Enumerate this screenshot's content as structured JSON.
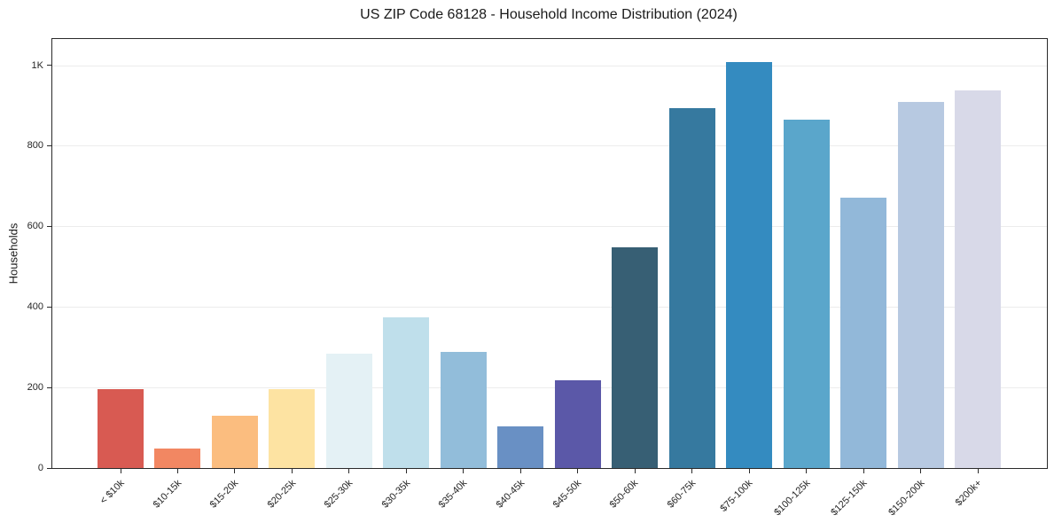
{
  "chart_data": {
    "type": "bar",
    "title": "US ZIP Code 68128 - Household Income Distribution (2024)",
    "xlabel": "",
    "ylabel": "Households",
    "categories": [
      "< $10k",
      "$10-15k",
      "$15-20k",
      "$20-25k",
      "$25-30k",
      "$30-35k",
      "$35-40k",
      "$40-45k",
      "$45-50k",
      "$50-60k",
      "$60-75k",
      "$75-100k",
      "$100-125k",
      "$125-150k",
      "$150-200k",
      "$200k+"
    ],
    "values": [
      195,
      48,
      130,
      195,
      284,
      375,
      289,
      104,
      217,
      548,
      894,
      1008,
      864,
      672,
      908,
      937
    ],
    "bar_colors": [
      "#d85a52",
      "#f28762",
      "#fbbd7f",
      "#fde3a2",
      "#e4f1f5",
      "#bfdfeb",
      "#92bdda",
      "#6990c4",
      "#5b58a8",
      "#375f74",
      "#36799f",
      "#348bc0",
      "#5aa6cb",
      "#92b8d9",
      "#b7c9e1",
      "#d8d9e8"
    ],
    "y_ticks": [
      {
        "value": 0,
        "label": "0"
      },
      {
        "value": 200,
        "label": "200"
      },
      {
        "value": 400,
        "label": "400"
      },
      {
        "value": 600,
        "label": "600"
      },
      {
        "value": 800,
        "label": "800"
      },
      {
        "value": 1000,
        "label": "1K"
      }
    ],
    "ylim": [
      0,
      1065
    ],
    "grid": "horizontal",
    "legend": "none",
    "background": "#ffffff",
    "grid_color": "#ececec",
    "spine_color": "#2a2a2a"
  }
}
